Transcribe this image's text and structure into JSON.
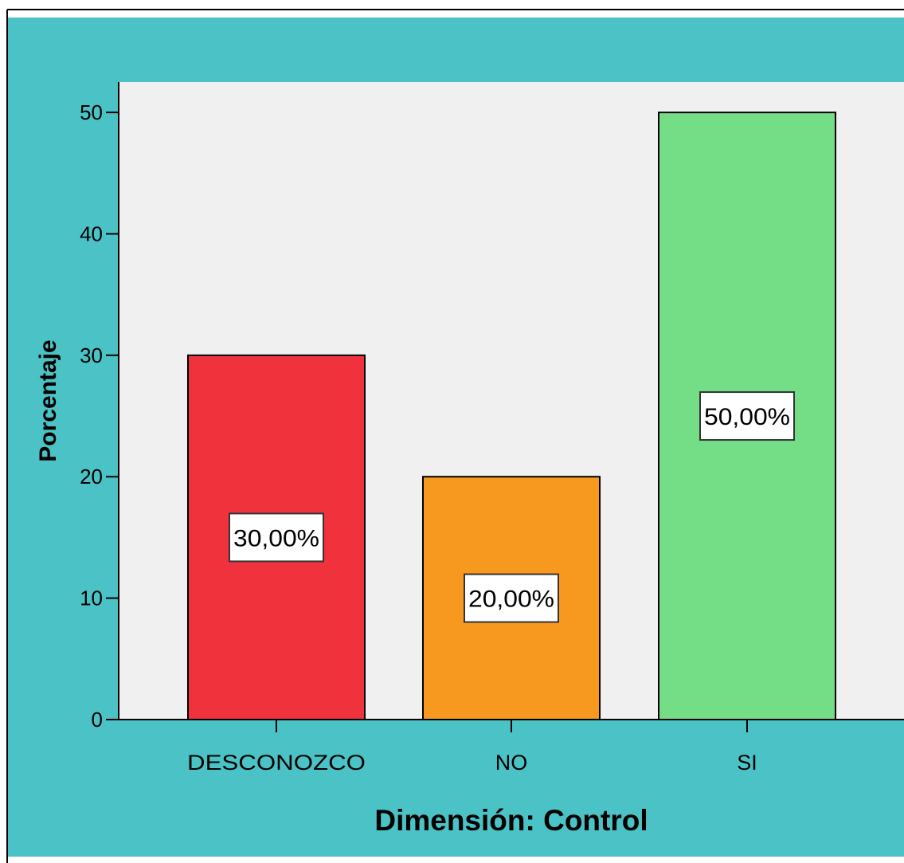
{
  "chart_data": {
    "type": "bar",
    "categories": [
      "DESCONOZCO",
      "NO",
      "SI"
    ],
    "values": [
      30,
      20,
      50
    ],
    "data_labels": [
      "30,00%",
      "20,00%",
      "50,00%"
    ],
    "xlabel": "Dimensión: Control",
    "ylabel": "Porcentaje",
    "ylim": [
      0,
      52.5
    ],
    "yticks": [
      0,
      10,
      20,
      30,
      40,
      50
    ],
    "ytick_labels": [
      "0",
      "10",
      "20",
      "30",
      "40",
      "50"
    ],
    "colors": [
      "#f0323c",
      "#f7991e",
      "#73de86"
    ],
    "plot_background": "#f0f0f0",
    "frame_background": "#4bc2c5",
    "grid": false,
    "legend": "none"
  }
}
